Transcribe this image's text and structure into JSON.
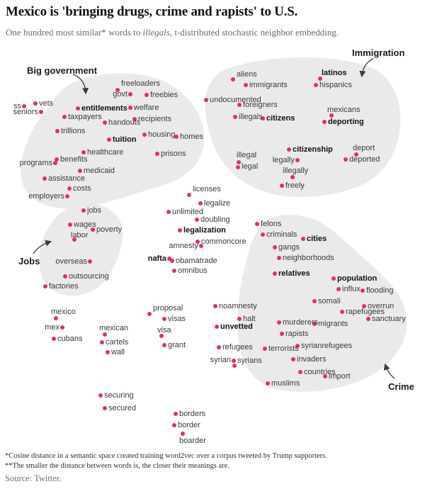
{
  "header": {
    "title": "Mexico is 'bringing drugs, crime and rapists' to U.S.",
    "subtitle_prefix": "One hundred most similar* words to ",
    "subtitle_italic": "illegals",
    "subtitle_suffix": ", t-distributed stochastic neighbor embedding."
  },
  "footnotes": [
    "*Cosine distance in a semantic space created training word2vec over a corpus tweeted by Trump supporters.",
    "**The smaller the distance between words is, the closer their meanings are."
  ],
  "source": "Source: Twitter.",
  "chart_data": {
    "type": "scatter",
    "embedding": "t-distributed stochastic neighbor embedding",
    "has_axes": false,
    "dot_color": "#e0315f",
    "blob_color": "#eaeaea",
    "clusters": [
      {
        "label": "Big government"
      },
      {
        "label": "Immigration"
      },
      {
        "label": "Jobs"
      },
      {
        "label": "Crime"
      }
    ],
    "points": [
      {
        "w": "ss",
        "d": [
          34,
          150
        ],
        "l": [
          30,
          150
        ],
        "a": "r"
      },
      {
        "w": "vets",
        "d": [
          50,
          146
        ],
        "l": [
          55,
          146
        ],
        "a": "l"
      },
      {
        "w": "seniors",
        "d": [
          58,
          158
        ],
        "l": [
          54,
          158
        ],
        "a": "r"
      },
      {
        "w": "freeloaders",
        "d": [
          166,
          127
        ],
        "l": [
          171,
          118
        ],
        "a": "l",
        "c": "big-government"
      },
      {
        "w": "govt",
        "d": [
          184,
          133
        ],
        "l": [
          180,
          133
        ],
        "a": "r",
        "c": "big-government"
      },
      {
        "w": "freebies",
        "d": [
          207,
          134
        ],
        "l": [
          212,
          134
        ],
        "a": "l",
        "c": "big-government"
      },
      {
        "w": "entitlements",
        "d": [
          110,
          153
        ],
        "l": [
          115,
          153
        ],
        "a": "l",
        "b": true,
        "c": "big-government"
      },
      {
        "w": "welfare",
        "d": [
          184,
          152
        ],
        "l": [
          189,
          152
        ],
        "a": "l",
        "c": "big-government"
      },
      {
        "w": "taxpayers",
        "d": [
          91,
          165
        ],
        "l": [
          96,
          165
        ],
        "a": "l",
        "c": "big-government"
      },
      {
        "w": "handouts",
        "d": [
          148,
          173
        ],
        "l": [
          153,
          173
        ],
        "a": "l",
        "c": "big-government"
      },
      {
        "w": "recipients",
        "d": [
          190,
          168
        ],
        "l": [
          195,
          168
        ],
        "a": "l",
        "c": "big-government"
      },
      {
        "w": "trillions",
        "d": [
          81,
          185
        ],
        "l": [
          86,
          185
        ],
        "a": "l",
        "c": "big-government"
      },
      {
        "w": "tuition",
        "d": [
          154,
          197
        ],
        "l": [
          159,
          197
        ],
        "a": "l",
        "b": true,
        "c": "big-government"
      },
      {
        "w": "housing",
        "d": [
          204,
          190
        ],
        "l": [
          209,
          190
        ],
        "a": "l",
        "c": "big-government"
      },
      {
        "w": "homes",
        "d": [
          249,
          193
        ],
        "l": [
          254,
          193
        ],
        "a": "l",
        "c": "big-government"
      },
      {
        "w": "healthcare",
        "d": [
          118,
          215
        ],
        "l": [
          123,
          215
        ],
        "a": "l",
        "c": "big-government"
      },
      {
        "w": "prisons",
        "d": [
          222,
          217
        ],
        "l": [
          227,
          217
        ],
        "a": "l",
        "c": "big-government"
      },
      {
        "w": "benefits",
        "d": [
          80,
          225
        ],
        "l": [
          85,
          225
        ],
        "a": "l",
        "c": "big-government"
      },
      {
        "w": "programs",
        "d": [
          78,
          230
        ],
        "l": [
          74,
          230
        ],
        "a": "r",
        "c": "big-government"
      },
      {
        "w": "medicaid",
        "d": [
          113,
          241
        ],
        "l": [
          118,
          241
        ],
        "a": "l",
        "c": "big-government"
      },
      {
        "w": "assistance",
        "d": [
          63,
          252
        ],
        "l": [
          68,
          252
        ],
        "a": "l",
        "c": "big-government"
      },
      {
        "w": "costs",
        "d": [
          98,
          266
        ],
        "l": [
          103,
          266
        ],
        "a": "l",
        "c": "big-government"
      },
      {
        "w": "employers",
        "d": [
          95,
          277
        ],
        "l": [
          91,
          277
        ],
        "a": "r",
        "c": "big-government"
      },
      {
        "w": "aliens",
        "d": [
          329,
          112
        ],
        "l": [
          334,
          105
        ],
        "a": "l",
        "c": "immigration"
      },
      {
        "w": "immigrants",
        "d": [
          347,
          120
        ],
        "l": [
          352,
          120
        ],
        "a": "l",
        "c": "immigration"
      },
      {
        "w": "latinos",
        "d": [
          452,
          111
        ],
        "l": [
          454,
          103
        ],
        "a": "l",
        "b": true,
        "c": "immigration"
      },
      {
        "w": "hispanics",
        "d": [
          446,
          120
        ],
        "l": [
          451,
          120
        ],
        "a": "l",
        "c": "immigration"
      },
      {
        "w": "undocumented",
        "d": [
          291,
          141
        ],
        "l": [
          296,
          141
        ],
        "a": "l",
        "c": "immigration"
      },
      {
        "w": "foreigners",
        "d": [
          338,
          148
        ],
        "l": [
          343,
          148
        ],
        "a": "l",
        "c": "immigration"
      },
      {
        "w": "mexicans",
        "d": [
          468,
          163
        ],
        "l": [
          462,
          155
        ],
        "a": "l",
        "c": "immigration"
      },
      {
        "w": "illegals",
        "d": [
          332,
          165
        ],
        "l": [
          337,
          165
        ],
        "a": "l",
        "c": "immigration"
      },
      {
        "w": "citizens",
        "d": [
          371,
          167
        ],
        "l": [
          376,
          167
        ],
        "a": "l",
        "b": true,
        "c": "immigration"
      },
      {
        "w": "deporting",
        "d": [
          458,
          172
        ],
        "l": [
          463,
          172
        ],
        "a": "l",
        "b": true,
        "c": "immigration"
      },
      {
        "w": "citizenship",
        "d": [
          408,
          211
        ],
        "l": [
          413,
          211
        ],
        "a": "l",
        "b": true,
        "c": "immigration"
      },
      {
        "w": "deport",
        "d": [
          503,
          218
        ],
        "l": [
          498,
          209
        ],
        "a": "l",
        "c": "immigration"
      },
      {
        "w": "deported",
        "d": [
          488,
          225
        ],
        "l": [
          493,
          225
        ],
        "a": "l",
        "c": "immigration"
      },
      {
        "w": "illegal",
        "d": [
          337,
          229
        ],
        "l": [
          334,
          219
        ],
        "a": "l",
        "c": "immigration"
      },
      {
        "w": "legally",
        "d": [
          420,
          226
        ],
        "l": [
          416,
          226
        ],
        "a": "r",
        "c": "immigration"
      },
      {
        "w": "legal",
        "d": [
          336,
          236
        ],
        "l": [
          341,
          235
        ],
        "a": "l",
        "c": "immigration"
      },
      {
        "w": "illegally",
        "d": [
          413,
          250
        ],
        "l": [
          399,
          241
        ],
        "a": "l",
        "c": "immigration"
      },
      {
        "w": "freely",
        "d": [
          398,
          262
        ],
        "l": [
          403,
          262
        ],
        "a": "l",
        "c": "immigration"
      },
      {
        "w": "licenses",
        "d": [
          267,
          275
        ],
        "l": [
          272,
          267
        ],
        "a": "l"
      },
      {
        "w": "legalize",
        "d": [
          283,
          287
        ],
        "l": [
          288,
          287
        ],
        "a": "l"
      },
      {
        "w": "unlimited",
        "d": [
          238,
          299
        ],
        "l": [
          243,
          299
        ],
        "a": "l"
      },
      {
        "w": "doubling",
        "d": [
          278,
          310
        ],
        "l": [
          283,
          310
        ],
        "a": "l"
      },
      {
        "w": "legalization",
        "d": [
          254,
          325
        ],
        "l": [
          259,
          325
        ],
        "a": "l",
        "b": true
      },
      {
        "w": "commoncore",
        "d": [
          279,
          341
        ],
        "l": [
          284,
          341
        ],
        "a": "l"
      },
      {
        "w": "amnesty",
        "d": [
          284,
          347
        ],
        "l": [
          280,
          347
        ],
        "a": "r"
      },
      {
        "w": "nafta",
        "d": [
          239,
          365
        ],
        "l": [
          235,
          365
        ],
        "a": "r",
        "b": true
      },
      {
        "w": "obamatrade",
        "d": [
          243,
          368
        ],
        "l": [
          248,
          368
        ],
        "a": "l"
      },
      {
        "w": "omnibus",
        "d": [
          246,
          382
        ],
        "l": [
          251,
          382
        ],
        "a": "l"
      },
      {
        "w": "jobs",
        "d": [
          118,
          297
        ],
        "l": [
          123,
          297
        ],
        "a": "l",
        "c": "jobs"
      },
      {
        "w": "wages",
        "d": [
          99,
          317
        ],
        "l": [
          104,
          317
        ],
        "a": "l",
        "c": "jobs"
      },
      {
        "w": "poverty",
        "d": [
          131,
          324
        ],
        "l": [
          136,
          324
        ],
        "a": "l",
        "c": "jobs"
      },
      {
        "w": "labor",
        "d": [
          105,
          338
        ],
        "l": [
          100,
          332
        ],
        "a": "l",
        "c": "jobs"
      },
      {
        "w": "overseas",
        "d": [
          127,
          369
        ],
        "l": [
          123,
          369
        ],
        "a": "r",
        "c": "jobs"
      },
      {
        "w": "outsourcing",
        "d": [
          92,
          390
        ],
        "l": [
          97,
          390
        ],
        "a": "l",
        "c": "jobs"
      },
      {
        "w": "factories",
        "d": [
          64,
          404
        ],
        "l": [
          69,
          404
        ],
        "a": "l",
        "c": "jobs"
      },
      {
        "w": "felons",
        "d": [
          363,
          316
        ],
        "l": [
          368,
          316
        ],
        "a": "l",
        "c": "crime"
      },
      {
        "w": "criminals",
        "d": [
          371,
          331
        ],
        "l": [
          376,
          331
        ],
        "a": "l",
        "c": "crime"
      },
      {
        "w": "cities",
        "d": [
          428,
          337
        ],
        "l": [
          433,
          337
        ],
        "a": "l",
        "b": true,
        "c": "crime"
      },
      {
        "w": "gangs",
        "d": [
          388,
          349
        ],
        "l": [
          393,
          349
        ],
        "a": "l",
        "c": "crime"
      },
      {
        "w": "neighborhoods",
        "d": [
          394,
          364
        ],
        "l": [
          399,
          364
        ],
        "a": "l",
        "c": "crime"
      },
      {
        "w": "relatives",
        "d": [
          388,
          386
        ],
        "l": [
          393,
          386
        ],
        "a": "l",
        "b": true,
        "c": "crime"
      },
      {
        "w": "population",
        "d": [
          471,
          393
        ],
        "l": [
          476,
          393
        ],
        "a": "l",
        "b": true,
        "c": "crime"
      },
      {
        "w": "influx",
        "d": [
          478,
          408
        ],
        "l": [
          483,
          408
        ],
        "a": "l",
        "c": "crime"
      },
      {
        "w": "flooding",
        "d": [
          512,
          410
        ],
        "l": [
          517,
          410
        ],
        "a": "l",
        "c": "crime"
      },
      {
        "w": "somali",
        "d": [
          444,
          425
        ],
        "l": [
          449,
          425
        ],
        "a": "l",
        "c": "crime"
      },
      {
        "w": "overrun",
        "d": [
          514,
          432
        ],
        "l": [
          519,
          432
        ],
        "a": "l",
        "c": "crime"
      },
      {
        "w": "rapefugees",
        "d": [
          483,
          440
        ],
        "l": [
          488,
          440
        ],
        "a": "l",
        "c": "crime"
      },
      {
        "w": "sanctuary",
        "d": [
          520,
          450
        ],
        "l": [
          525,
          450
        ],
        "a": "l",
        "c": "crime"
      },
      {
        "w": "murderers",
        "d": [
          394,
          455
        ],
        "l": [
          399,
          455
        ],
        "a": "l",
        "c": "crime"
      },
      {
        "w": "migrants",
        "d": [
          444,
          457
        ],
        "l": [
          449,
          457
        ],
        "a": "l",
        "c": "crime"
      },
      {
        "w": "rapists",
        "d": [
          398,
          471
        ],
        "l": [
          403,
          471
        ],
        "a": "l",
        "c": "crime"
      },
      {
        "w": "syrianrefugees",
        "d": [
          420,
          488
        ],
        "l": [
          425,
          488
        ],
        "a": "l",
        "c": "crime"
      },
      {
        "w": "terrorists",
        "d": [
          374,
          492
        ],
        "l": [
          379,
          492
        ],
        "a": "l",
        "c": "crime"
      },
      {
        "w": "invaders",
        "d": [
          414,
          507
        ],
        "l": [
          419,
          507
        ],
        "a": "l",
        "c": "crime"
      },
      {
        "w": "countries",
        "d": [
          424,
          525
        ],
        "l": [
          429,
          525
        ],
        "a": "l",
        "c": "crime"
      },
      {
        "w": "import",
        "d": [
          459,
          531
        ],
        "l": [
          464,
          531
        ],
        "a": "l",
        "c": "crime"
      },
      {
        "w": "muslims",
        "d": [
          378,
          541
        ],
        "l": [
          383,
          541
        ],
        "a": "l",
        "c": "crime"
      },
      {
        "w": "mexico",
        "d": [
          79,
          449
        ],
        "l": [
          72,
          440
        ],
        "a": "l"
      },
      {
        "w": "mex",
        "d": [
          88,
          462
        ],
        "l": [
          84,
          462
        ],
        "a": "r"
      },
      {
        "w": "cubans",
        "d": [
          76,
          478
        ],
        "l": [
          81,
          478
        ],
        "a": "l"
      },
      {
        "w": "mexican",
        "d": [
          148,
          472
        ],
        "l": [
          140,
          463
        ],
        "a": "l"
      },
      {
        "w": "cartels",
        "d": [
          144,
          483
        ],
        "l": [
          149,
          483
        ],
        "a": "l"
      },
      {
        "w": "wall",
        "d": [
          152,
          497
        ],
        "l": [
          157,
          497
        ],
        "a": "l"
      },
      {
        "w": "proposal",
        "d": [
          211,
          443
        ],
        "l": [
          216,
          435
        ],
        "a": "l"
      },
      {
        "w": "visas",
        "d": [
          232,
          450
        ],
        "l": [
          237,
          450
        ],
        "a": "l"
      },
      {
        "w": "visa",
        "d": [
          228,
          474
        ],
        "l": [
          222,
          466
        ],
        "a": "l"
      },
      {
        "w": "grant",
        "d": [
          232,
          487
        ],
        "l": [
          237,
          487
        ],
        "a": "l"
      },
      {
        "w": "noamnesty",
        "d": [
          304,
          432
        ],
        "l": [
          309,
          432
        ],
        "a": "l"
      },
      {
        "w": "halt",
        "d": [
          338,
          450
        ],
        "l": [
          343,
          450
        ],
        "a": "l"
      },
      {
        "w": "unvetted",
        "d": [
          306,
          461
        ],
        "l": [
          311,
          461
        ],
        "a": "l",
        "b": true
      },
      {
        "w": "refugees",
        "d": [
          309,
          490
        ],
        "l": [
          314,
          490
        ],
        "a": "l"
      },
      {
        "w": "syrian",
        "d": [
          330,
          509
        ],
        "l": [
          326,
          508
        ],
        "a": "r"
      },
      {
        "w": "syrians",
        "d": [
          331,
          516
        ],
        "l": [
          335,
          509
        ],
        "a": "l"
      },
      {
        "w": "securing",
        "d": [
          142,
          558
        ],
        "l": [
          147,
          558
        ],
        "a": "l"
      },
      {
        "w": "secured",
        "d": [
          148,
          576
        ],
        "l": [
          153,
          576
        ],
        "a": "l"
      },
      {
        "w": "borders",
        "d": [
          248,
          584
        ],
        "l": [
          253,
          584
        ],
        "a": "l"
      },
      {
        "w": "border",
        "d": [
          246,
          600
        ],
        "l": [
          251,
          600
        ],
        "a": "l"
      },
      {
        "w": "boarder",
        "d": [
          258,
          612
        ],
        "l": [
          253,
          622
        ],
        "a": "l"
      }
    ]
  }
}
